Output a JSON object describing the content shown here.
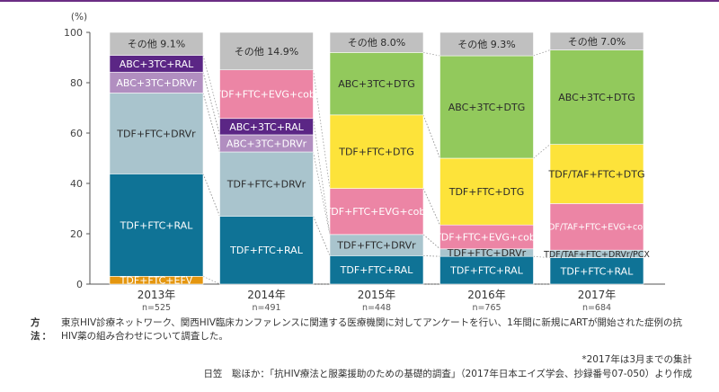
{
  "chart_data": {
    "type": "bar",
    "stacked": true,
    "y_unit": "(%)",
    "ylim": [
      0,
      100
    ],
    "yticks": [
      0,
      20,
      40,
      60,
      80,
      100
    ],
    "grid": false,
    "bars": [
      {
        "label": "2013年",
        "n": "n=525",
        "segments": [
          {
            "name": "TDF+FTC+EFV",
            "value": 3.1,
            "color": "#e4960f",
            "text": "#ffffff"
          },
          {
            "name": "TDF+FTC+RAL",
            "value": 40.7,
            "color": "#0f7396",
            "text": "#ffffff"
          },
          {
            "name": "TDF+FTC+DRVr",
            "value": 32.1,
            "color": "#a9c4cd",
            "text": "#2b2b2b"
          },
          {
            "name": "ABC+3TC+DRVr",
            "value": 8.3,
            "color": "#b18ec0",
            "text": "#ffffff"
          },
          {
            "name": "ABC+3TC+RAL",
            "value": 6.7,
            "color": "#5b2685",
            "text": "#ffffff"
          },
          {
            "name": "その他 9.1%",
            "value": 9.1,
            "color": "#c0c0c0",
            "text": "#2b2b2b"
          }
        ]
      },
      {
        "label": "2014年",
        "n": "n=491",
        "segments": [
          {
            "name": "TDF+FTC+RAL",
            "value": 27.0,
            "color": "#0f7396",
            "text": "#ffffff"
          },
          {
            "name": "TDF+FTC+DRVr",
            "value": 25.5,
            "color": "#a9c4cd",
            "text": "#2b2b2b"
          },
          {
            "name": "ABC+3TC+DRVr",
            "value": 6.8,
            "color": "#b18ec0",
            "text": "#ffffff"
          },
          {
            "name": "ABC+3TC+RAL",
            "value": 6.5,
            "color": "#5b2685",
            "text": "#ffffff"
          },
          {
            "name": "TDF+FTC+EVG+cobi",
            "value": 19.3,
            "color": "#ec85a5",
            "text": "#ffffff"
          },
          {
            "name": "その他 14.9%",
            "value": 14.9,
            "color": "#c0c0c0",
            "text": "#2b2b2b"
          }
        ]
      },
      {
        "label": "2015年",
        "n": "n=448",
        "segments": [
          {
            "name": "TDF+FTC+RAL",
            "value": 11.3,
            "color": "#0f7396",
            "text": "#ffffff"
          },
          {
            "name": "TDF+FTC+DRVr",
            "value": 8.4,
            "color": "#a9c4cd",
            "text": "#2b2b2b"
          },
          {
            "name": "TDF+FTC+EVG+cobi",
            "value": 18.3,
            "color": "#ec85a5",
            "text": "#ffffff"
          },
          {
            "name": "TDF+FTC+DTG",
            "value": 29.2,
            "color": "#fde33a",
            "text": "#2b2b2b"
          },
          {
            "name": "ABC+3TC+DTG",
            "value": 24.8,
            "color": "#92c95c",
            "text": "#2b2b2b"
          },
          {
            "name": "その他 8.0%",
            "value": 8.0,
            "color": "#c0c0c0",
            "text": "#2b2b2b"
          }
        ]
      },
      {
        "label": "2016年",
        "n": "n=765",
        "segments": [
          {
            "name": "TDF+FTC+RAL",
            "value": 11.0,
            "color": "#0f7396",
            "text": "#ffffff"
          },
          {
            "name": "TDF+FTC+DRVr",
            "value": 3.0,
            "color": "#a9c4cd",
            "text": "#2b2b2b"
          },
          {
            "name": "TDF+FTC+EVG+cobi",
            "value": 9.5,
            "color": "#ec85a5",
            "text": "#ffffff"
          },
          {
            "name": "TDF+FTC+DTG",
            "value": 26.5,
            "color": "#fde33a",
            "text": "#2b2b2b"
          },
          {
            "name": "ABC+3TC+DTG",
            "value": 40.7,
            "color": "#92c95c",
            "text": "#2b2b2b"
          },
          {
            "name": "その他 9.3%",
            "value": 9.3,
            "color": "#c0c0c0",
            "text": "#2b2b2b"
          }
        ]
      },
      {
        "label": "2017年",
        "n": "n=684",
        "segments": [
          {
            "name": "TDF+FTC+RAL",
            "value": 10.5,
            "color": "#0f7396",
            "text": "#ffffff"
          },
          {
            "name": "TDF/TAF+FTC+DRVr/PCX",
            "value": 3.0,
            "color": "#a9c4cd",
            "text": "#2b2b2b"
          },
          {
            "name": "TDF/TAF+FTC+EVG+cobi",
            "value": 18.5,
            "color": "#ec85a5",
            "text": "#ffffff"
          },
          {
            "name": "TDF/TAF+FTC+DTG",
            "value": 23.5,
            "color": "#fde33a",
            "text": "#2b2b2b"
          },
          {
            "name": "ABC+3TC+DTG",
            "value": 37.5,
            "color": "#92c95c",
            "text": "#2b2b2b"
          },
          {
            "name": "その他 7.0%",
            "value": 7.0,
            "color": "#c0c0c0",
            "text": "#2b2b2b"
          }
        ]
      }
    ]
  },
  "notes": {
    "method_label": "方 法：",
    "method_text": "東京HIV診療ネットワーク、関西HIV臨床カンファレンスに関連する医療機関に対してアンケートを行い、1年間に新規にARTが開始された症例の抗HIV薬の組み合わせについて調査した。",
    "footnote": "*2017年は3月までの集計",
    "source": "日笠　聡ほか：「抗HIV療法と服薬援助のための基礎的調査」（2017年日本エイズ学会、抄録番号07-050）より作成"
  }
}
